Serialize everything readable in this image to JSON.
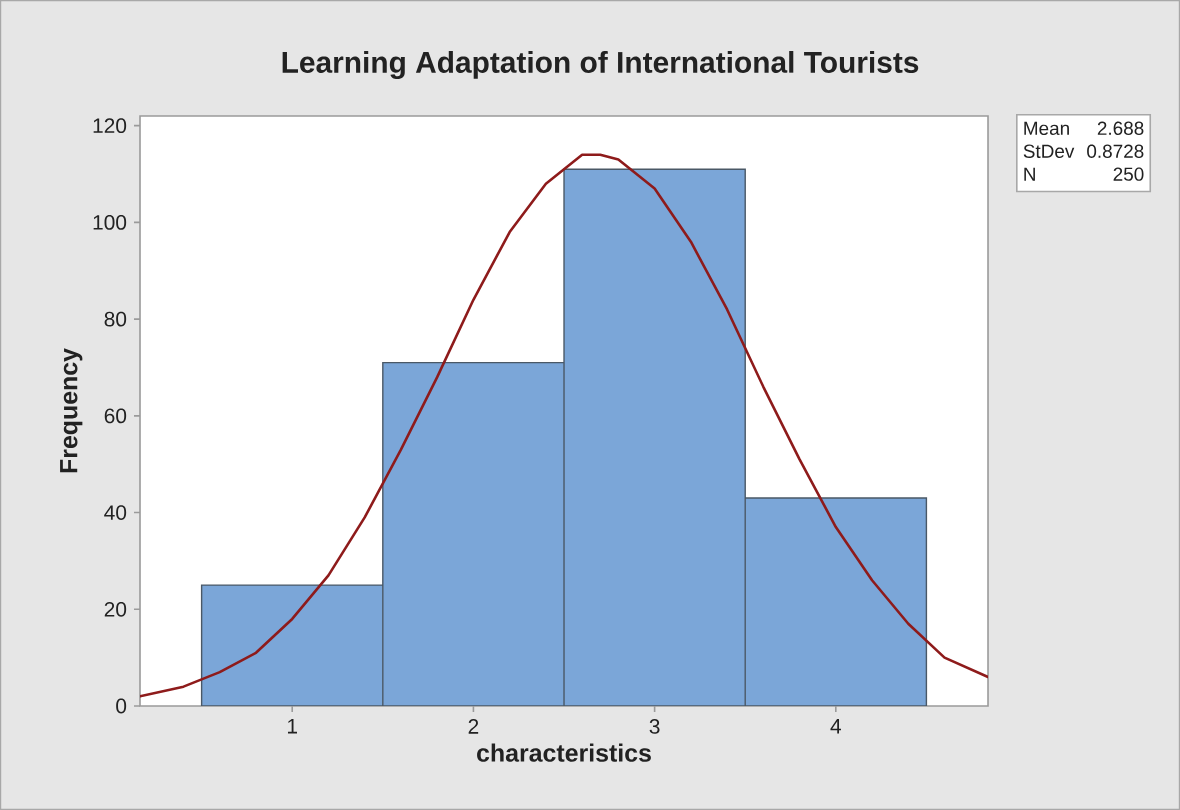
{
  "chart_data": {
    "type": "histogram",
    "title": "Learning Adaptation of International Tourists",
    "xlabel": "characteristics",
    "ylabel": "Frequency",
    "bins": [
      0.5,
      1.5,
      2.5,
      3.5,
      4.5
    ],
    "values": [
      25,
      71,
      111,
      43
    ],
    "color": "#7ba6d8",
    "series": [
      {
        "type": "line",
        "color": "#8e1b1b",
        "x": [
          0.16,
          0.4,
          0.6,
          0.8,
          1.0,
          1.2,
          1.4,
          1.6,
          1.8,
          2.0,
          2.2,
          2.4,
          2.6,
          2.7,
          2.8,
          3.0,
          3.2,
          3.4,
          3.6,
          3.8,
          4.0,
          4.2,
          4.4,
          4.6,
          4.84
        ],
        "values": [
          2,
          4,
          7,
          11,
          18,
          27,
          39,
          53,
          68,
          84,
          98,
          108,
          114,
          114,
          113,
          107,
          96,
          82,
          66,
          51,
          37,
          26,
          17,
          10,
          6
        ]
      }
    ],
    "xlim": [
      0.16,
      4.84
    ],
    "ylim": [
      0,
      122
    ],
    "xticks": [
      1,
      2,
      3,
      4
    ],
    "yticks": [
      0,
      20,
      40,
      60,
      80,
      100,
      120
    ],
    "annotations": [
      "Mean",
      "2.688",
      "StDev",
      "0.8728",
      "N",
      "250"
    ]
  }
}
